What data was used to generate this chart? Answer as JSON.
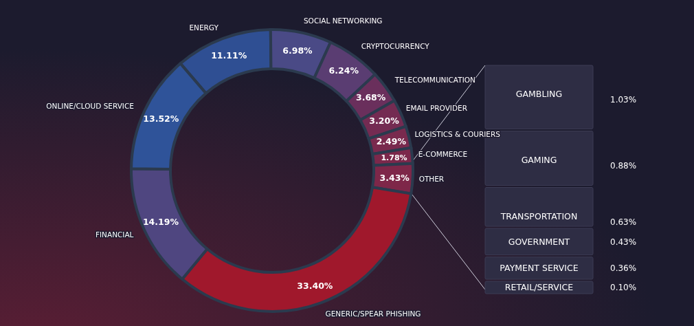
{
  "chart_data": [
    {
      "type": "donut",
      "categories": [
        "ENERGY",
        "SOCIAL NETWORKING",
        "CRYPTOCURRENCY",
        "TELECOMMUNICATION",
        "EMAIL PROVIDER",
        "LOGISTICS & COURIERS",
        "E-COMMERCE",
        "OTHER",
        "GENERIC/SPEAR PHISHING",
        "FINANCIAL",
        "ONLINE/CLOUD SERVICE"
      ],
      "values": [
        11.11,
        6.98,
        6.24,
        3.68,
        3.2,
        2.49,
        1.78,
        3.43,
        33.4,
        14.19,
        13.52
      ],
      "value_labels": [
        "11.11%",
        "6.98%",
        "6.24%",
        "3.68%",
        "3.20%",
        "2.49%",
        "1.78%",
        "3.43%",
        "33.40%",
        "14.19%",
        "13.52%"
      ],
      "colors": [
        "#2f4f93",
        "#4a4a86",
        "#5a3d72",
        "#6a2f5c",
        "#742b52",
        "#792a4e",
        "#7c284b",
        "#7e2749",
        "#a0182c",
        "#4f4680",
        "#2f5399"
      ]
    },
    {
      "type": "other",
      "categories": [
        "GAMBLING",
        "GAMING",
        "TRANSPORTATION",
        "GOVERNMENT",
        "PAYMENT SERVICE",
        "RETAIL/SERVICE"
      ],
      "values": [
        1.03,
        0.88,
        0.63,
        0.43,
        0.36,
        0.1
      ],
      "value_labels": [
        "1.03%",
        "0.88%",
        "0.63%",
        "0.43%",
        "0.36%",
        "0.10%"
      ],
      "colors": [
        "#2e2d44",
        "#2e2d44",
        "#2e2d44",
        "#2e2d44",
        "#2e2d44",
        "#2e2d44"
      ]
    }
  ]
}
